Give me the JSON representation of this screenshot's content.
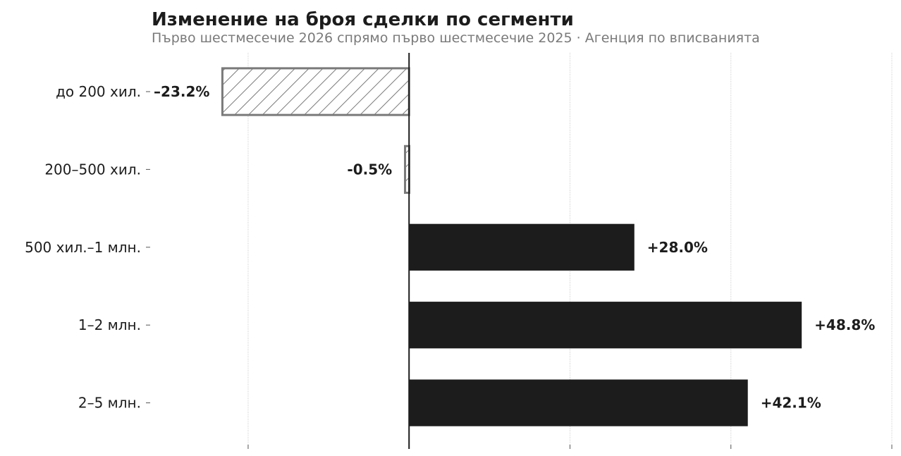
{
  "chart_data": {
    "type": "bar",
    "orientation": "horizontal",
    "title": "Изменение на броя сделки по сегменти",
    "subtitle": "Първо шестмесечие 2026 спрямо първо шестмесечие 2025  ·  Агенция по вписванията",
    "categories": [
      "до 200 хил.",
      "200–500 хил.",
      "500 хил.–1 млн.",
      "1–2 млн.",
      "2–5 млн."
    ],
    "values": [
      -23.2,
      -0.5,
      28.0,
      48.8,
      42.1
    ],
    "value_labels": [
      "–23.2%",
      "-0.5%",
      "+28.0%",
      "+48.8%",
      "+42.1%"
    ],
    "xlim": [
      -32,
      60
    ],
    "x_gridlines": [
      -20,
      0,
      20,
      40,
      60
    ],
    "grid": true,
    "colors": {
      "positive": "#1c1c1c",
      "negative_stroke": "#7a7a7a",
      "negative_fill": "#ffffff",
      "negative_pattern": "diagonal-hatch"
    }
  }
}
